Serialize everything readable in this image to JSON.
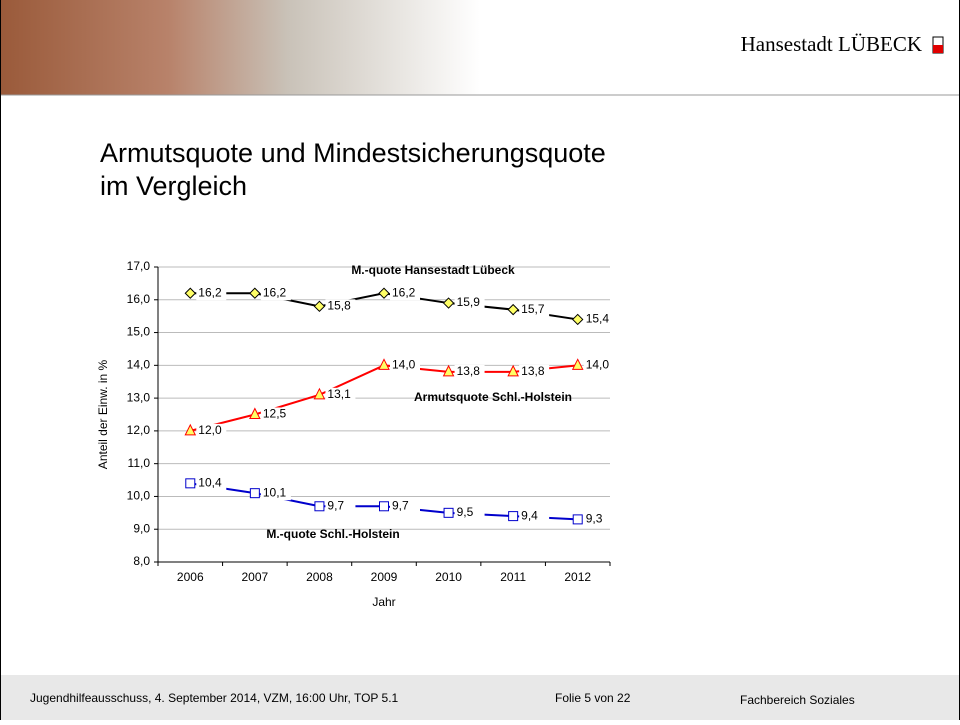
{
  "header": {
    "brand": "Hansestadt LÜBECK"
  },
  "title": [
    "Armutsquote und Mindestsicherungsquote",
    "im Vergleich"
  ],
  "chart_data": {
    "type": "line",
    "x_label": "Jahr",
    "y_label": "Anteil der Einw. in %",
    "categories": [
      "2006",
      "2007",
      "2008",
      "2009",
      "2010",
      "2011",
      "2012"
    ],
    "ylim": [
      8,
      17
    ],
    "yticks": [
      {
        "value": 8,
        "label": "8,0"
      },
      {
        "value": 9,
        "label": "9,0"
      },
      {
        "value": 10,
        "label": "10,0"
      },
      {
        "value": 11,
        "label": "11,0"
      },
      {
        "value": 12,
        "label": "12,0"
      },
      {
        "value": 13,
        "label": "13,0"
      },
      {
        "value": 14,
        "label": "14,0"
      },
      {
        "value": 15,
        "label": "15,0"
      },
      {
        "value": 16,
        "label": "16,0"
      },
      {
        "value": 17,
        "label": "17,0"
      }
    ],
    "grid": true,
    "series": [
      {
        "name": "M.-quote Hansestadt Lübeck",
        "color": "#000000",
        "marker": "diamond",
        "values": [
          16.2,
          16.2,
          15.8,
          16.2,
          15.9,
          15.7,
          15.4
        ],
        "value_labels": [
          "16,2",
          "16,2",
          "15,8",
          "16,2",
          "15,9",
          "15,7",
          "15,4"
        ]
      },
      {
        "name": "Armutsquote Schl.-Holstein",
        "color": "#ff0000",
        "marker": "triangle",
        "values": [
          12.0,
          12.5,
          13.1,
          14.0,
          13.8,
          13.8,
          14.0
        ],
        "value_labels": [
          "12,0",
          "12,5",
          "13,1",
          "14,0",
          "13,8",
          "13,8",
          "14,0"
        ]
      },
      {
        "name": "M.-quote Schl.-Holstein",
        "color": "#0000cc",
        "marker": "square",
        "values": [
          10.4,
          10.1,
          9.7,
          9.7,
          9.5,
          9.4,
          9.3
        ],
        "value_labels": [
          "10,4",
          "10,1",
          "9,7",
          "9,7",
          "9,5",
          "9,4",
          "9,3"
        ]
      }
    ]
  },
  "footer": {
    "meeting": "Jugendhilfeausschuss, 4. September 2014, VZM, 16:00 Uhr, TOP 5.1",
    "slide": "Folie 5 von 22",
    "department": "Fachbereich Soziales"
  }
}
